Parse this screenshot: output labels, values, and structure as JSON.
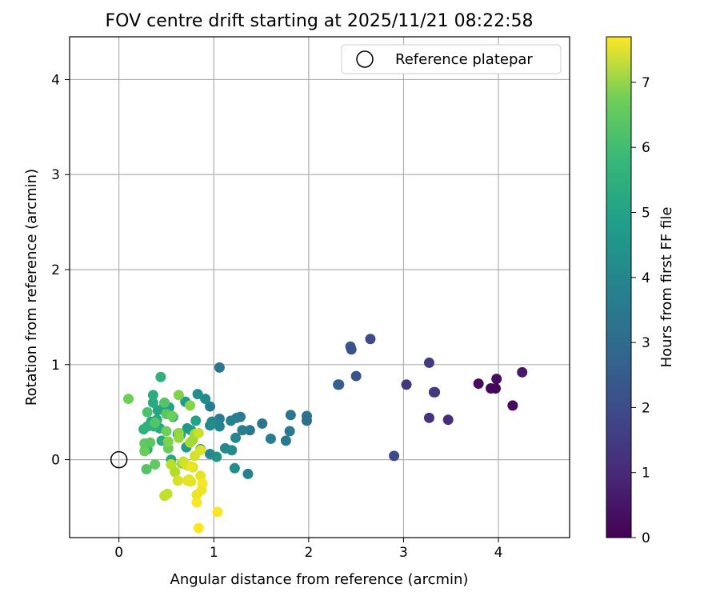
{
  "chart_data": {
    "type": "scatter",
    "title": "FOV centre drift starting at 2025/11/21 08:22:58",
    "xlabel": "Angular distance from reference (arcmin)",
    "ylabel": "Rotation from reference (arcmin)",
    "xlim": [
      -0.52,
      4.75
    ],
    "ylim": [
      -0.82,
      4.45
    ],
    "xticks": [
      "0",
      "1",
      "2",
      "3",
      "4"
    ],
    "yticks": [
      "0",
      "1",
      "2",
      "3",
      "4"
    ],
    "grid": true,
    "legend": {
      "position": "top-right",
      "entries": [
        "Reference platepar"
      ]
    },
    "reference_point": {
      "x": 0,
      "y": 0
    },
    "colorbar": {
      "label": "Hours from first FF file",
      "range": [
        0,
        7.7
      ],
      "ticks": [
        "0",
        "1",
        "2",
        "3",
        "4",
        "5",
        "6",
        "7"
      ],
      "colormap": "viridis"
    },
    "points": [
      {
        "x": 4.25,
        "y": 0.92,
        "h": 0.5
      },
      {
        "x": 4.15,
        "y": 0.57,
        "h": 0.2
      },
      {
        "x": 3.98,
        "y": 0.85,
        "h": 0.3
      },
      {
        "x": 3.97,
        "y": 0.75,
        "h": 0.1
      },
      {
        "x": 3.92,
        "y": 0.75,
        "h": 0.15
      },
      {
        "x": 3.79,
        "y": 0.8,
        "h": 0.25
      },
      {
        "x": 3.47,
        "y": 0.42,
        "h": 1.0
      },
      {
        "x": 3.33,
        "y": 0.71,
        "h": 1.1
      },
      {
        "x": 3.32,
        "y": 0.71,
        "h": 1.2
      },
      {
        "x": 3.27,
        "y": 1.02,
        "h": 1.3
      },
      {
        "x": 3.27,
        "y": 0.44,
        "h": 1.1
      },
      {
        "x": 3.03,
        "y": 0.79,
        "h": 1.2
      },
      {
        "x": 2.9,
        "y": 0.04,
        "h": 1.8
      },
      {
        "x": 2.65,
        "y": 1.27,
        "h": 1.7
      },
      {
        "x": 2.5,
        "y": 0.88,
        "h": 1.9
      },
      {
        "x": 2.45,
        "y": 1.16,
        "h": 1.9
      },
      {
        "x": 2.44,
        "y": 1.19,
        "h": 2.0
      },
      {
        "x": 2.31,
        "y": 0.79,
        "h": 2.2
      },
      {
        "x": 2.32,
        "y": 0.79,
        "h": 2.3
      },
      {
        "x": 1.98,
        "y": 0.46,
        "h": 2.9
      },
      {
        "x": 1.98,
        "y": 0.41,
        "h": 2.8
      },
      {
        "x": 1.81,
        "y": 0.47,
        "h": 3.0
      },
      {
        "x": 1.8,
        "y": 0.3,
        "h": 3.1
      },
      {
        "x": 1.76,
        "y": 0.2,
        "h": 3.1
      },
      {
        "x": 1.6,
        "y": 0.22,
        "h": 3.2
      },
      {
        "x": 1.51,
        "y": 0.38,
        "h": 3.0
      },
      {
        "x": 1.38,
        "y": 0.31,
        "h": 3.1
      },
      {
        "x": 1.36,
        "y": -0.15,
        "h": 3.4
      },
      {
        "x": 1.3,
        "y": 0.31,
        "h": 3.3
      },
      {
        "x": 1.28,
        "y": 0.45,
        "h": 3.2
      },
      {
        "x": 1.24,
        "y": 0.44,
        "h": 3.3
      },
      {
        "x": 1.23,
        "y": 0.23,
        "h": 3.5
      },
      {
        "x": 1.22,
        "y": -0.09,
        "h": 3.8
      },
      {
        "x": 1.19,
        "y": 0.1,
        "h": 3.7
      },
      {
        "x": 1.18,
        "y": 0.41,
        "h": 3.4
      },
      {
        "x": 1.12,
        "y": 0.12,
        "h": 3.6
      },
      {
        "x": 1.06,
        "y": 0.97,
        "h": 3.0
      },
      {
        "x": 1.06,
        "y": 0.43,
        "h": 3.3
      },
      {
        "x": 1.06,
        "y": 0.35,
        "h": 3.5
      },
      {
        "x": 1.03,
        "y": 0.03,
        "h": 4.0
      },
      {
        "x": 0.98,
        "y": 0.4,
        "h": 3.6
      },
      {
        "x": 0.96,
        "y": 0.06,
        "h": 3.6
      },
      {
        "x": 0.96,
        "y": 0.36,
        "h": 3.7
      },
      {
        "x": 0.96,
        "y": 0.56,
        "h": 3.3
      },
      {
        "x": 0.91,
        "y": 0.64,
        "h": 3.6
      },
      {
        "x": 0.86,
        "y": 0.11,
        "h": 3.7
      },
      {
        "x": 0.83,
        "y": 0.69,
        "h": 3.8
      },
      {
        "x": 0.81,
        "y": 0.41,
        "h": 4.4
      },
      {
        "x": 0.76,
        "y": 0.31,
        "h": 4.3
      },
      {
        "x": 0.72,
        "y": 0.33,
        "h": 4.2
      },
      {
        "x": 0.71,
        "y": 0.13,
        "h": 4.1
      },
      {
        "x": 0.7,
        "y": 0.61,
        "h": 4.2
      },
      {
        "x": 0.65,
        "y": 0.26,
        "h": 4.6
      },
      {
        "x": 0.62,
        "y": 0.27,
        "h": 4.3
      },
      {
        "x": 0.57,
        "y": 0.45,
        "h": 4.5
      },
      {
        "x": 0.55,
        "y": 0.0,
        "h": 4.6
      },
      {
        "x": 0.53,
        "y": 0.55,
        "h": 4.4
      },
      {
        "x": 0.5,
        "y": 0.48,
        "h": 4.7
      },
      {
        "x": 0.48,
        "y": 0.58,
        "h": 4.3
      },
      {
        "x": 0.45,
        "y": 0.2,
        "h": 4.7
      },
      {
        "x": 0.43,
        "y": 0.33,
        "h": 4.6
      },
      {
        "x": 0.41,
        "y": 0.52,
        "h": 4.5
      },
      {
        "x": 0.4,
        "y": 0.42,
        "h": 4.6
      },
      {
        "x": 0.37,
        "y": 0.35,
        "h": 4.9
      },
      {
        "x": 0.36,
        "y": 0.6,
        "h": 4.7
      },
      {
        "x": 0.36,
        "y": 0.68,
        "h": 4.8
      },
      {
        "x": 0.34,
        "y": 0.4,
        "h": 4.5
      },
      {
        "x": 0.3,
        "y": 0.11,
        "h": 4.8
      },
      {
        "x": 0.3,
        "y": 0.35,
        "h": 4.9
      },
      {
        "x": 0.26,
        "y": 0.32,
        "h": 4.9
      },
      {
        "x": 0.44,
        "y": 0.87,
        "h": 4.9
      },
      {
        "x": 0.1,
        "y": 0.64,
        "h": 6.0
      },
      {
        "x": 0.3,
        "y": 0.5,
        "h": 5.5
      },
      {
        "x": 0.27,
        "y": 0.09,
        "h": 5.9
      },
      {
        "x": 0.27,
        "y": 0.17,
        "h": 5.8
      },
      {
        "x": 0.29,
        "y": -0.1,
        "h": 5.6
      },
      {
        "x": 0.33,
        "y": 0.18,
        "h": 5.7
      },
      {
        "x": 0.38,
        "y": -0.05,
        "h": 5.8
      },
      {
        "x": 0.38,
        "y": 0.39,
        "h": 5.6
      },
      {
        "x": 0.48,
        "y": 0.6,
        "h": 5.6
      },
      {
        "x": 0.5,
        "y": 0.48,
        "h": 5.7
      },
      {
        "x": 0.52,
        "y": 0.12,
        "h": 5.9
      },
      {
        "x": 0.5,
        "y": 0.3,
        "h": 6.0
      },
      {
        "x": 0.52,
        "y": 0.19,
        "h": 6.2
      },
      {
        "x": 0.56,
        "y": 0.46,
        "h": 6.0
      },
      {
        "x": 0.63,
        "y": 0.68,
        "h": 6.2
      },
      {
        "x": 0.63,
        "y": 0.28,
        "h": 6.4
      },
      {
        "x": 0.63,
        "y": 0.23,
        "h": 6.5
      },
      {
        "x": 0.66,
        "y": -0.04,
        "h": 6.5
      },
      {
        "x": 0.75,
        "y": 0.57,
        "h": 6.3
      },
      {
        "x": 0.8,
        "y": 0.27,
        "h": 6.6
      },
      {
        "x": 0.75,
        "y": 0.18,
        "h": 6.7
      },
      {
        "x": 0.78,
        "y": 0.21,
        "h": 6.6
      },
      {
        "x": 0.55,
        "y": -0.05,
        "h": 6.9
      },
      {
        "x": 0.59,
        "y": -0.13,
        "h": 6.8
      },
      {
        "x": 0.48,
        "y": -0.38,
        "h": 7.0
      },
      {
        "x": 0.51,
        "y": -0.36,
        "h": 7.0
      },
      {
        "x": 0.62,
        "y": -0.22,
        "h": 7.2
      },
      {
        "x": 0.68,
        "y": -0.02,
        "h": 7.1
      },
      {
        "x": 0.72,
        "y": -0.06,
        "h": 7.2
      },
      {
        "x": 0.74,
        "y": -0.21,
        "h": 7.3
      },
      {
        "x": 0.76,
        "y": -0.23,
        "h": 7.4
      },
      {
        "x": 0.78,
        "y": -0.08,
        "h": 7.3
      },
      {
        "x": 0.8,
        "y": 0.04,
        "h": 7.2
      },
      {
        "x": 0.82,
        "y": -0.37,
        "h": 7.5
      },
      {
        "x": 0.82,
        "y": -0.45,
        "h": 7.6
      },
      {
        "x": 0.84,
        "y": -0.72,
        "h": 7.7
      },
      {
        "x": 0.86,
        "y": -0.17,
        "h": 7.4
      },
      {
        "x": 0.88,
        "y": -0.25,
        "h": 7.6
      },
      {
        "x": 0.87,
        "y": -0.32,
        "h": 7.5
      },
      {
        "x": 0.86,
        "y": 0.1,
        "h": 7.3
      },
      {
        "x": 1.04,
        "y": -0.55,
        "h": 7.6
      },
      {
        "x": 0.84,
        "y": 0.28,
        "h": 7.1
      },
      {
        "x": 0.72,
        "y": -0.22,
        "h": 7.4
      },
      {
        "x": 0.76,
        "y": -0.07,
        "h": 7.5
      }
    ]
  }
}
